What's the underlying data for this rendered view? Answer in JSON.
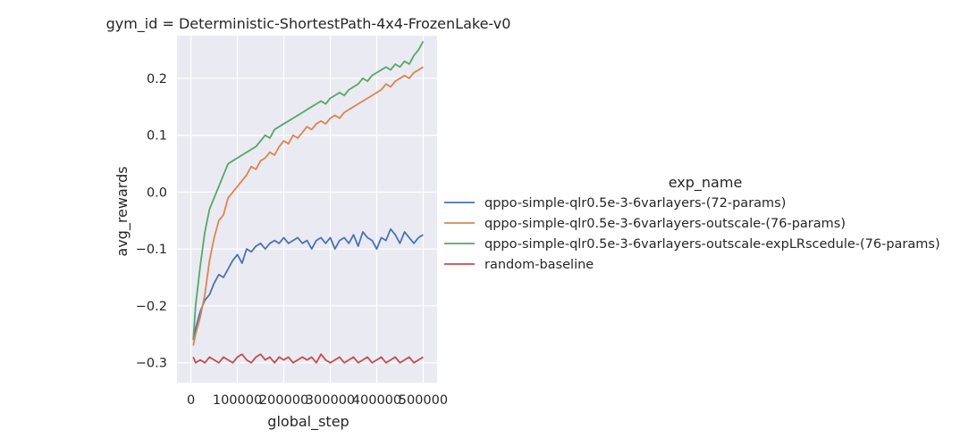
{
  "chart_data": {
    "type": "line",
    "title": "gym_id = Deterministic-ShortestPath-4x4-FrozenLake-v0",
    "xlabel": "global_step",
    "ylabel": "avg_rewards",
    "xlim": [
      -30000,
      530000
    ],
    "ylim": [
      -0.335,
      0.275
    ],
    "xticks": [
      0,
      100000,
      200000,
      300000,
      400000,
      500000
    ],
    "xtick_labels": [
      "0",
      "100000",
      "200000",
      "300000",
      "400000",
      "500000"
    ],
    "yticks": [
      -0.3,
      -0.2,
      -0.1,
      0.0,
      0.1,
      0.2
    ],
    "ytick_labels": [
      "−0.3",
      "−0.2",
      "−0.1",
      "0.0",
      "0.1",
      "0.2"
    ],
    "grid": true,
    "legend": {
      "title": "exp_name",
      "placement": "right"
    },
    "series": [
      {
        "name": "qppo-simple-qlr0.5e-3-6varlayers-(72-params)",
        "color": "#4c72b0",
        "x": [
          5000,
          10000,
          20000,
          30000,
          40000,
          50000,
          60000,
          70000,
          80000,
          90000,
          100000,
          110000,
          120000,
          130000,
          140000,
          150000,
          160000,
          170000,
          180000,
          190000,
          200000,
          210000,
          220000,
          230000,
          240000,
          250000,
          260000,
          270000,
          280000,
          290000,
          300000,
          310000,
          320000,
          330000,
          340000,
          350000,
          360000,
          370000,
          380000,
          390000,
          400000,
          410000,
          420000,
          430000,
          440000,
          450000,
          460000,
          470000,
          480000,
          490000,
          500000
        ],
        "y": [
          -0.26,
          -0.24,
          -0.21,
          -0.19,
          -0.18,
          -0.16,
          -0.145,
          -0.15,
          -0.135,
          -0.12,
          -0.11,
          -0.125,
          -0.1,
          -0.105,
          -0.095,
          -0.09,
          -0.1,
          -0.09,
          -0.085,
          -0.09,
          -0.08,
          -0.09,
          -0.085,
          -0.08,
          -0.09,
          -0.085,
          -0.1,
          -0.085,
          -0.08,
          -0.09,
          -0.08,
          -0.1,
          -0.085,
          -0.08,
          -0.09,
          -0.075,
          -0.095,
          -0.07,
          -0.08,
          -0.085,
          -0.1,
          -0.08,
          -0.085,
          -0.065,
          -0.075,
          -0.09,
          -0.07,
          -0.08,
          -0.09,
          -0.08,
          -0.075
        ]
      },
      {
        "name": "qppo-simple-qlr0.5e-3-6varlayers-outscale-(76-params)",
        "color": "#dd8452",
        "x": [
          5000,
          10000,
          20000,
          30000,
          40000,
          50000,
          60000,
          70000,
          80000,
          90000,
          100000,
          110000,
          120000,
          130000,
          140000,
          150000,
          160000,
          170000,
          180000,
          190000,
          200000,
          210000,
          220000,
          230000,
          240000,
          250000,
          260000,
          270000,
          280000,
          290000,
          300000,
          310000,
          320000,
          330000,
          340000,
          350000,
          360000,
          370000,
          380000,
          390000,
          400000,
          410000,
          420000,
          430000,
          440000,
          450000,
          460000,
          470000,
          480000,
          490000,
          500000
        ],
        "y": [
          -0.27,
          -0.25,
          -0.22,
          -0.18,
          -0.12,
          -0.08,
          -0.05,
          -0.04,
          -0.01,
          0.0,
          0.01,
          0.02,
          0.03,
          0.045,
          0.04,
          0.055,
          0.06,
          0.07,
          0.065,
          0.08,
          0.09,
          0.085,
          0.1,
          0.095,
          0.105,
          0.115,
          0.11,
          0.12,
          0.125,
          0.12,
          0.13,
          0.135,
          0.13,
          0.14,
          0.145,
          0.15,
          0.155,
          0.16,
          0.165,
          0.17,
          0.175,
          0.18,
          0.19,
          0.185,
          0.195,
          0.2,
          0.205,
          0.2,
          0.21,
          0.215,
          0.22
        ]
      },
      {
        "name": "qppo-simple-qlr0.5e-3-6varlayers-outscale-expLRscedule-(76-params)",
        "color": "#55a868",
        "x": [
          5000,
          10000,
          20000,
          30000,
          40000,
          50000,
          60000,
          70000,
          80000,
          90000,
          100000,
          110000,
          120000,
          130000,
          140000,
          150000,
          160000,
          170000,
          180000,
          190000,
          200000,
          210000,
          220000,
          230000,
          240000,
          250000,
          260000,
          270000,
          280000,
          290000,
          300000,
          310000,
          320000,
          330000,
          340000,
          350000,
          360000,
          370000,
          380000,
          390000,
          400000,
          410000,
          420000,
          430000,
          440000,
          450000,
          460000,
          470000,
          480000,
          490000,
          500000
        ],
        "y": [
          -0.26,
          -0.2,
          -0.13,
          -0.07,
          -0.03,
          -0.01,
          0.01,
          0.03,
          0.05,
          0.055,
          0.06,
          0.065,
          0.07,
          0.075,
          0.08,
          0.09,
          0.1,
          0.095,
          0.11,
          0.115,
          0.12,
          0.125,
          0.13,
          0.135,
          0.14,
          0.145,
          0.15,
          0.155,
          0.16,
          0.155,
          0.165,
          0.17,
          0.175,
          0.17,
          0.18,
          0.185,
          0.19,
          0.2,
          0.195,
          0.205,
          0.21,
          0.215,
          0.22,
          0.215,
          0.225,
          0.22,
          0.23,
          0.225,
          0.24,
          0.25,
          0.265
        ]
      },
      {
        "name": "random-baseline",
        "color": "#c44e52",
        "x": [
          5000,
          10000,
          20000,
          30000,
          40000,
          50000,
          60000,
          70000,
          80000,
          90000,
          100000,
          110000,
          120000,
          130000,
          140000,
          150000,
          160000,
          170000,
          180000,
          190000,
          200000,
          210000,
          220000,
          230000,
          240000,
          250000,
          260000,
          270000,
          280000,
          290000,
          300000,
          310000,
          320000,
          330000,
          340000,
          350000,
          360000,
          370000,
          380000,
          390000,
          400000,
          410000,
          420000,
          430000,
          440000,
          450000,
          460000,
          470000,
          480000,
          490000,
          500000
        ],
        "y": [
          -0.29,
          -0.3,
          -0.295,
          -0.3,
          -0.29,
          -0.295,
          -0.3,
          -0.29,
          -0.295,
          -0.3,
          -0.29,
          -0.285,
          -0.295,
          -0.3,
          -0.29,
          -0.285,
          -0.295,
          -0.29,
          -0.3,
          -0.29,
          -0.295,
          -0.29,
          -0.3,
          -0.295,
          -0.29,
          -0.295,
          -0.29,
          -0.3,
          -0.285,
          -0.295,
          -0.3,
          -0.295,
          -0.29,
          -0.3,
          -0.295,
          -0.29,
          -0.3,
          -0.295,
          -0.29,
          -0.3,
          -0.295,
          -0.29,
          -0.3,
          -0.295,
          -0.29,
          -0.3,
          -0.295,
          -0.29,
          -0.3,
          -0.295,
          -0.29
        ]
      }
    ]
  }
}
